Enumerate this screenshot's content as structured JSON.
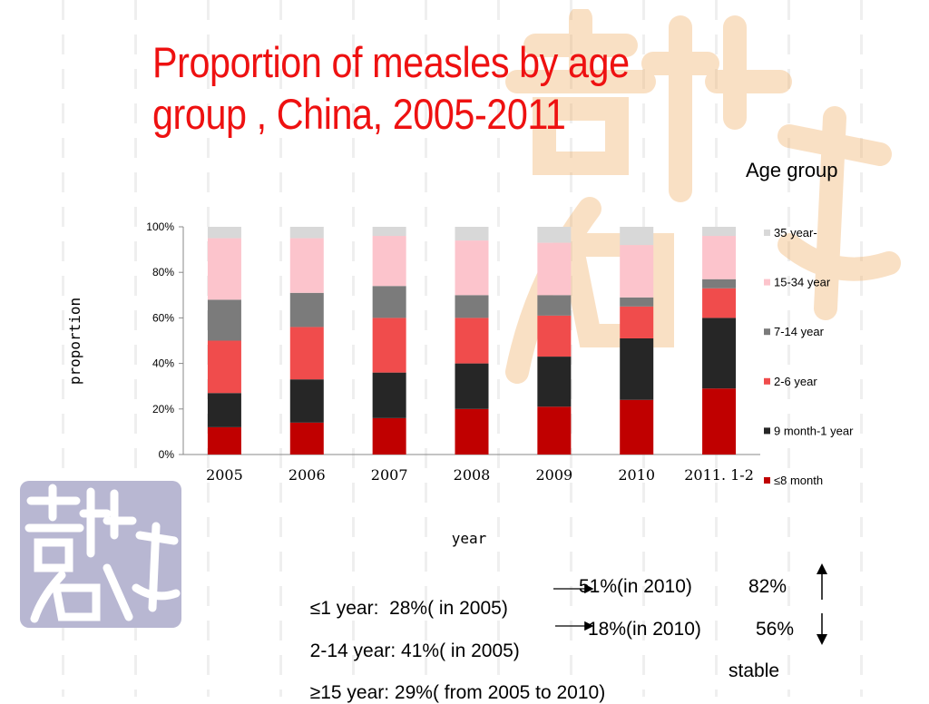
{
  "slide": {
    "title": "Proportion of measles by age\ngroup , China, 2005-2011",
    "legend_title": "Age group"
  },
  "chart_data": {
    "type": "bar",
    "stacked": true,
    "percent": true,
    "categories": [
      "2005",
      "2006",
      "2007",
      "2008",
      "2009",
      "2010",
      "2011. 1-2"
    ],
    "xlabel": "year",
    "ylabel": "proportion",
    "ylim": [
      0,
      100
    ],
    "yticks": [
      "0%",
      "20%",
      "40%",
      "60%",
      "80%",
      "100%"
    ],
    "series": [
      {
        "name": "≤8 month",
        "color": "#c00000",
        "values": [
          12,
          14,
          16,
          20,
          21,
          24,
          29
        ]
      },
      {
        "name": "9 month-1 year",
        "color": "#262626",
        "values": [
          15,
          19,
          20,
          20,
          22,
          27,
          31
        ]
      },
      {
        "name": "2-6 year",
        "color": "#f04c4c",
        "values": [
          23,
          23,
          24,
          20,
          18,
          14,
          13
        ]
      },
      {
        "name": "7-14 year",
        "color": "#7b7b7b",
        "values": [
          18,
          15,
          14,
          10,
          9,
          4,
          4
        ]
      },
      {
        "name": "15-34 year",
        "color": "#fcc4cc",
        "values": [
          27,
          24,
          22,
          24,
          23,
          23,
          19
        ]
      },
      {
        "name": "35 year-",
        "color": "#d8d8d8",
        "values": [
          5,
          5,
          4,
          6,
          7,
          8,
          4
        ]
      }
    ]
  },
  "statements": [
    {
      "text_a": "≤1 year:  28%( in 2005)",
      "text_b": "51%(in 2010)",
      "pct": "82%",
      "trend": "up"
    },
    {
      "text_a": "2-14 year: 41%( in 2005)",
      "text_b": "18%(in 2010)",
      "pct": "56%",
      "trend": "down"
    },
    {
      "text_a": "≥15 year: 29%( from 2005 to 2010)",
      "text_b": "",
      "pct": "stable",
      "trend": "none"
    }
  ]
}
